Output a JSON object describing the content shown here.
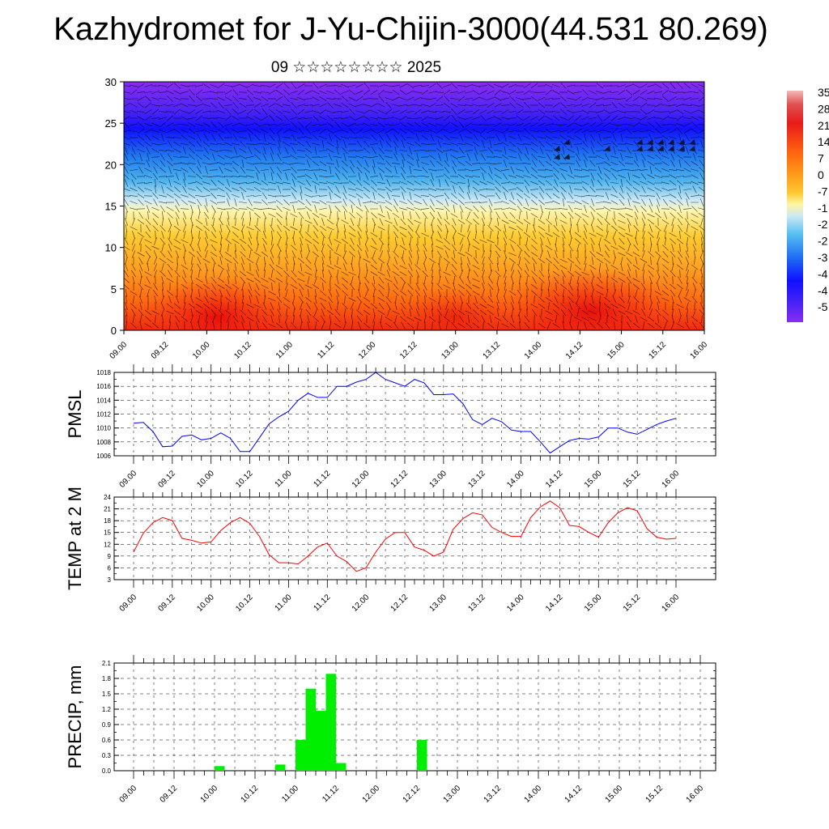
{
  "title": "Kazhydromet for J-Yu-Chijin-3000(44.531 80.269)",
  "subtitle": "09 ☆☆☆☆☆☆☆☆ 2025",
  "colors": {
    "pmsl_line": "#0000ff",
    "temp_line": "#ff0000",
    "precip_bar": "#00ee00",
    "colorbar": [
      "#7a1ff0",
      "#3a1ff5",
      "#0d10ff",
      "#1e6ef5",
      "#21a8f0",
      "#8fd0f0",
      "#d8ecf5",
      "#fff8b0",
      "#ffd740",
      "#ffb020",
      "#ff8a10",
      "#ff5a10",
      "#f01a10",
      "#d81a1a",
      "#e88080",
      "#f4b8b8"
    ]
  },
  "chart_data": [
    {
      "type": "heatmap",
      "name": "upper-air",
      "ylim": [
        0,
        30
      ],
      "yticks": [
        "0",
        "5",
        "10",
        "15",
        "20",
        "25",
        "30"
      ],
      "xticks": [
        "09.00",
        "09.12",
        "10.00",
        "10.12",
        "11.00",
        "11.12",
        "12.00",
        "12.12",
        "13.00",
        "13.12",
        "14.00",
        "14.12",
        "15.00",
        "15.12",
        "16.00"
      ],
      "colorbar_labels": [
        "35",
        "28",
        "21",
        "14",
        "7",
        "0",
        "-7",
        "-1",
        "-2",
        "-2",
        "-3",
        "-4",
        "-4",
        "-5"
      ]
    },
    {
      "type": "line",
      "ylabel": "PMSL",
      "ylim": [
        1006,
        1018
      ],
      "yticks": [
        "1006",
        "1008",
        "1010",
        "1012",
        "1014",
        "1016",
        "1018"
      ],
      "xticks": [
        "09.00",
        "09.12",
        "10.00",
        "10.12",
        "11.00",
        "11.12",
        "12.00",
        "12.12",
        "13.00",
        "13.12",
        "14.00",
        "14.12",
        "15.00",
        "15.12",
        "16.00"
      ],
      "x_hours": [
        0,
        3,
        6,
        9,
        12,
        15,
        18,
        21,
        24,
        27,
        30,
        33,
        36,
        39,
        42,
        45,
        48,
        51,
        54,
        57,
        60,
        63,
        66,
        69,
        72,
        75,
        78,
        81,
        84,
        87,
        90,
        93,
        96,
        99,
        102,
        105,
        108,
        111,
        114,
        117,
        120,
        123,
        126,
        129,
        132,
        135,
        138,
        141,
        144,
        147,
        150,
        153,
        156,
        159,
        162,
        165,
        168
      ],
      "values": [
        1010.7,
        1010.8,
        1009.5,
        1007.3,
        1007.4,
        1008.8,
        1009.0,
        1008.3,
        1008.5,
        1009.3,
        1008.5,
        1006.6,
        1006.6,
        1008.6,
        1010.6,
        1011.6,
        1012.4,
        1014.0,
        1015.0,
        1014.4,
        1014.4,
        1016.0,
        1016.0,
        1016.6,
        1017.0,
        1018.0,
        1017.0,
        1016.5,
        1016.0,
        1017.0,
        1016.5,
        1014.8,
        1014.8,
        1014.9,
        1013.5,
        1011.2,
        1010.5,
        1011.4,
        1010.9,
        1009.7,
        1009.5,
        1009.5,
        1008.0,
        1006.4,
        1007.3,
        1008.2,
        1008.5,
        1008.4,
        1008.7,
        1010.0,
        1010.0,
        1009.4,
        1009.1,
        1009.8,
        1010.5,
        1011.0,
        1011.4
      ]
    },
    {
      "type": "line",
      "ylabel": "TEMP at 2 M",
      "ylim": [
        3,
        24
      ],
      "yticks": [
        "3",
        "6",
        "9",
        "12",
        "15",
        "18",
        "21",
        "24"
      ],
      "xticks": [
        "09.00",
        "09.12",
        "10.00",
        "10.12",
        "11.00",
        "11.12",
        "12.00",
        "12.12",
        "13.00",
        "13.12",
        "14.00",
        "14.12",
        "15.00",
        "15.12",
        "16.00"
      ],
      "x_hours": [
        0,
        3,
        6,
        9,
        12,
        15,
        18,
        21,
        24,
        27,
        30,
        33,
        36,
        39,
        42,
        45,
        48,
        51,
        54,
        57,
        60,
        63,
        66,
        69,
        72,
        75,
        78,
        81,
        84,
        87,
        90,
        93,
        96,
        99,
        102,
        105,
        108,
        111,
        114,
        117,
        120,
        123,
        126,
        129,
        132,
        135,
        138,
        141,
        144,
        147,
        150,
        153,
        156,
        159,
        162,
        165,
        168
      ],
      "values": [
        10.0,
        14.8,
        17.5,
        18.8,
        18.0,
        13.5,
        13.0,
        12.3,
        12.6,
        15.5,
        17.5,
        18.8,
        17.3,
        14.0,
        9.3,
        7.3,
        7.3,
        7.0,
        9.0,
        11.3,
        12.3,
        9.0,
        7.6,
        5.1,
        6.0,
        10.0,
        13.3,
        15.0,
        15.0,
        11.3,
        10.5,
        9.0,
        10.0,
        15.8,
        18.5,
        20.0,
        19.5,
        16.3,
        15.0,
        14.0,
        14.0,
        18.8,
        21.5,
        23.0,
        21.3,
        16.8,
        16.5,
        15.0,
        13.8,
        17.5,
        20.0,
        21.3,
        20.5,
        16.0,
        13.8,
        13.3,
        13.5
      ]
    },
    {
      "type": "bar",
      "ylabel": "PRECIP, mm",
      "ylim": [
        0,
        2.1
      ],
      "yticks": [
        "0.0",
        "0.3",
        "0.6",
        "0.9",
        "1.2",
        "1.5",
        "1.8",
        "2.1"
      ],
      "xticks": [
        "09.00",
        "09.12",
        "10.00",
        "10.12",
        "11.00",
        "11.12",
        "12.00",
        "12.12",
        "13.00",
        "13.12",
        "14.00",
        "14.12",
        "15.00",
        "15.12",
        "16.00"
      ],
      "bar_hours": [
        24,
        42,
        48,
        51,
        54,
        57,
        60,
        84
      ],
      "values": [
        0.09,
        0.12,
        0.6,
        1.6,
        1.17,
        1.89,
        0.15,
        0.6
      ]
    }
  ]
}
